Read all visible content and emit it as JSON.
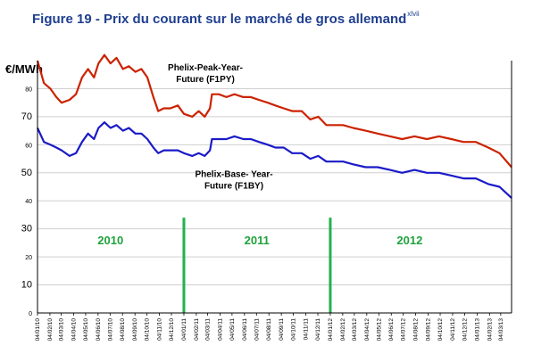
{
  "figure": {
    "title": "Figure 19 - Prix du courant sur le marché de gros allemand",
    "footnote": "xlvii"
  },
  "chart_data": {
    "type": "line",
    "ylabel": "€/MWh",
    "ylim": [
      0,
      90
    ],
    "y_ticks": [
      0,
      10,
      20,
      30,
      40,
      50,
      60,
      70,
      80
    ],
    "xlim": [
      "2010-01-04",
      "2013-03-31"
    ],
    "x_ticks": [
      "04/01/10",
      "04/02/10",
      "04/03/10",
      "04/04/10",
      "04/05/10",
      "04/06/10",
      "04/07/10",
      "04/08/10",
      "04/09/10",
      "04/10/10",
      "04/11/10",
      "04/12/10",
      "04/01/11",
      "04/02/11",
      "04/03/11",
      "04/04/11",
      "04/05/11",
      "04/06/11",
      "04/07/11",
      "04/08/11",
      "04/09/11",
      "04/10/11",
      "04/11/11",
      "04/12/11",
      "04/01/12",
      "04/02/12",
      "04/03/12",
      "04/04/12",
      "04/05/12",
      "04/06/12",
      "04/07/12",
      "04/08/12",
      "04/09/12",
      "04/10/12",
      "04/11/12",
      "04/12/12",
      "04/01/13",
      "04/02/13",
      "04/03/13"
    ],
    "year_dividers": [
      "2011-01-04",
      "2012-01-04"
    ],
    "year_labels": [
      {
        "text": "2010",
        "x": "2010-07-05"
      },
      {
        "text": "2011",
        "x": "2011-07-05"
      },
      {
        "text": "2012",
        "x": "2012-07-20"
      }
    ],
    "series": [
      {
        "name": "Phelix-Peak-Year-Future (F1PY)",
        "name_lines": [
          "Phelix-Peak-Year-",
          "Future (F1PY)"
        ],
        "color": "#cc2200",
        "points": [
          [
            "2010-01-04",
            90
          ],
          [
            "2010-01-20",
            82
          ],
          [
            "2010-02-05",
            80
          ],
          [
            "2010-02-20",
            77
          ],
          [
            "2010-03-05",
            75
          ],
          [
            "2010-03-25",
            76
          ],
          [
            "2010-04-10",
            78
          ],
          [
            "2010-04-25",
            84
          ],
          [
            "2010-05-10",
            87
          ],
          [
            "2010-05-25",
            84
          ],
          [
            "2010-06-05",
            89
          ],
          [
            "2010-06-20",
            92
          ],
          [
            "2010-07-05",
            89
          ],
          [
            "2010-07-20",
            91
          ],
          [
            "2010-08-05",
            87
          ],
          [
            "2010-08-20",
            88
          ],
          [
            "2010-09-05",
            86
          ],
          [
            "2010-09-20",
            87
          ],
          [
            "2010-10-05",
            84
          ],
          [
            "2010-10-20",
            77
          ],
          [
            "2010-11-01",
            72
          ],
          [
            "2010-11-15",
            73
          ],
          [
            "2010-12-01",
            73
          ],
          [
            "2010-12-20",
            74
          ],
          [
            "2011-01-04",
            71
          ],
          [
            "2011-01-25",
            70
          ],
          [
            "2011-02-10",
            72
          ],
          [
            "2011-02-25",
            70
          ],
          [
            "2011-03-10",
            73
          ],
          [
            "2011-03-15",
            78
          ],
          [
            "2011-04-01",
            78
          ],
          [
            "2011-04-20",
            77
          ],
          [
            "2011-05-10",
            78
          ],
          [
            "2011-06-01",
            77
          ],
          [
            "2011-06-20",
            77
          ],
          [
            "2011-07-10",
            76
          ],
          [
            "2011-08-01",
            75
          ],
          [
            "2011-08-20",
            74
          ],
          [
            "2011-09-10",
            73
          ],
          [
            "2011-10-01",
            72
          ],
          [
            "2011-10-25",
            72
          ],
          [
            "2011-11-15",
            69
          ],
          [
            "2011-12-05",
            70
          ],
          [
            "2011-12-25",
            67
          ],
          [
            "2012-01-15",
            67
          ],
          [
            "2012-02-05",
            67
          ],
          [
            "2012-03-01",
            66
          ],
          [
            "2012-04-01",
            65
          ],
          [
            "2012-05-01",
            64
          ],
          [
            "2012-06-01",
            63
          ],
          [
            "2012-07-01",
            62
          ],
          [
            "2012-08-01",
            63
          ],
          [
            "2012-09-01",
            62
          ],
          [
            "2012-10-01",
            63
          ],
          [
            "2012-11-01",
            62
          ],
          [
            "2012-12-01",
            61
          ],
          [
            "2013-01-01",
            61
          ],
          [
            "2013-02-01",
            59
          ],
          [
            "2013-03-01",
            57
          ],
          [
            "2013-03-31",
            52
          ]
        ]
      },
      {
        "name": "Phelix-Base- Year-Future (F1BY)",
        "name_lines": [
          "Phelix-Base- Year-",
          "Future (F1BY)"
        ],
        "color": "#1a1ac8",
        "points": [
          [
            "2010-01-04",
            66
          ],
          [
            "2010-01-20",
            61
          ],
          [
            "2010-02-05",
            60
          ],
          [
            "2010-02-20",
            59
          ],
          [
            "2010-03-05",
            58
          ],
          [
            "2010-03-25",
            56
          ],
          [
            "2010-04-10",
            57
          ],
          [
            "2010-04-25",
            61
          ],
          [
            "2010-05-10",
            64
          ],
          [
            "2010-05-25",
            62
          ],
          [
            "2010-06-05",
            66
          ],
          [
            "2010-06-20",
            68
          ],
          [
            "2010-07-05",
            66
          ],
          [
            "2010-07-20",
            67
          ],
          [
            "2010-08-05",
            65
          ],
          [
            "2010-08-20",
            66
          ],
          [
            "2010-09-05",
            64
          ],
          [
            "2010-09-20",
            64
          ],
          [
            "2010-10-05",
            62
          ],
          [
            "2010-10-20",
            59
          ],
          [
            "2010-11-01",
            57
          ],
          [
            "2010-11-15",
            58
          ],
          [
            "2010-12-01",
            58
          ],
          [
            "2010-12-20",
            58
          ],
          [
            "2011-01-04",
            57
          ],
          [
            "2011-01-25",
            56
          ],
          [
            "2011-02-10",
            57
          ],
          [
            "2011-02-25",
            56
          ],
          [
            "2011-03-10",
            58
          ],
          [
            "2011-03-15",
            62
          ],
          [
            "2011-04-01",
            62
          ],
          [
            "2011-04-20",
            62
          ],
          [
            "2011-05-10",
            63
          ],
          [
            "2011-06-01",
            62
          ],
          [
            "2011-06-20",
            62
          ],
          [
            "2011-07-10",
            61
          ],
          [
            "2011-08-01",
            60
          ],
          [
            "2011-08-20",
            59
          ],
          [
            "2011-09-10",
            59
          ],
          [
            "2011-10-01",
            57
          ],
          [
            "2011-10-25",
            57
          ],
          [
            "2011-11-15",
            55
          ],
          [
            "2011-12-05",
            56
          ],
          [
            "2011-12-25",
            54
          ],
          [
            "2012-01-15",
            54
          ],
          [
            "2012-02-05",
            54
          ],
          [
            "2012-03-01",
            53
          ],
          [
            "2012-04-01",
            52
          ],
          [
            "2012-05-01",
            52
          ],
          [
            "2012-06-01",
            51
          ],
          [
            "2012-07-01",
            50
          ],
          [
            "2012-08-01",
            51
          ],
          [
            "2012-09-01",
            50
          ],
          [
            "2012-10-01",
            50
          ],
          [
            "2012-11-01",
            49
          ],
          [
            "2012-12-01",
            48
          ],
          [
            "2013-01-01",
            48
          ],
          [
            "2013-02-01",
            46
          ],
          [
            "2013-03-01",
            45
          ],
          [
            "2013-03-31",
            41
          ]
        ]
      }
    ]
  }
}
